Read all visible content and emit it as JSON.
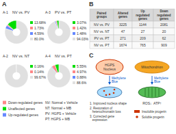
{
  "chart_data": [
    {
      "type": "pie",
      "title": "NV vs. PV",
      "subtitle": "A-1",
      "values": [
        13.68,
        1.73,
        4.59,
        80.0
      ],
      "value_labels": [
        "13.68%",
        "1.73%",
        "4.59%",
        "80.0%"
      ],
      "colors": [
        "#00dd00",
        "#ff8888",
        "#6688ff",
        "#e0e0e0"
      ],
      "data_labels": true
    },
    {
      "type": "pie",
      "title": "PV vs. PT",
      "subtitle": "A-3",
      "values": [
        3.07,
        1.42,
        1.48,
        94.03
      ],
      "value_labels": [
        "3.07%",
        "1.42%",
        "1.48%",
        "94.03%"
      ],
      "colors": [
        "#00dd00",
        "#ff8888",
        "#6688ff",
        "#e0e0e0"
      ],
      "data_labels": true
    },
    {
      "type": "pie",
      "title": "NV vs. NT",
      "subtitle": "A-2",
      "values": [
        0.16,
        0.14,
        0.03,
        99.67
      ],
      "value_labels": [
        "0.16%",
        "0.14%",
        null,
        "99.67%"
      ],
      "colors": [
        "#00dd00",
        "#ff8888",
        "#6688ff",
        "#e0e0e0"
      ],
      "data_labels": true
    },
    {
      "type": "pie",
      "title": "NV vs. PT",
      "subtitle": "A-4",
      "values": [
        5.55,
        4.97,
        0.88,
        88.6
      ],
      "value_labels": [
        "5.55%",
        "4.97%",
        "0.88%",
        "88.6%"
      ],
      "colors": [
        "#00dd00",
        "#ff8888",
        "#6688ff",
        "#e0e0e0"
      ],
      "data_labels": true
    },
    {
      "type": "key",
      "title": "A",
      "categories": [
        "Down-regulated genes",
        "Unaffected genes",
        "Up-regulated genes"
      ],
      "colors": [
        "#ff8888",
        "#00dd00",
        "#6688ff"
      ],
      "annotations": [
        "NV: Normal + Vehicle",
        "NT: Normal + MB",
        "PV: HGPS + Vehicle",
        "PT: HGPS + MB"
      ]
    },
    {
      "type": "table",
      "title": "B",
      "columns": [
        "Paired\ngroups",
        "Altered\ngenes",
        "Up\nregulated\ngenes",
        "Down\nregulated\ngenes"
      ],
      "series": [
        {
          "name": "NV vs. PV",
          "values": [
            3225,
            1144,
            2081
          ]
        },
        {
          "name": "NV vs. NT",
          "values": [
            47,
            27,
            20
          ]
        },
        {
          "name": "PV vs. PT",
          "values": [
            271,
            209,
            62
          ]
        },
        {
          "name": "NV vs. PT",
          "values": [
            1674,
            765,
            909
          ]
        }
      ]
    },
    {
      "type": "diagram",
      "title": "C",
      "annotations": [
        "HGPS\nNucleus",
        "Mitochondrion",
        "Methylene\nBlue",
        "Methylene\nBlue",
        "ROS↓  ATP↑",
        "1. Improved nucleus shape",
        "2. Restoration of\n   heterochromatin loss",
        "3. Corrected gene\n   expression",
        "Insoluble progerin",
        "Soluble progerin"
      ]
    }
  ]
}
